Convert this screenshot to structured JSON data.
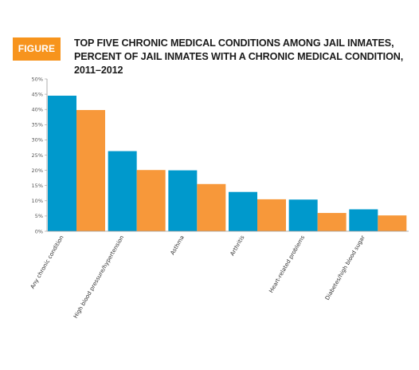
{
  "figure_label": "FIGURE 1.",
  "title": "TOP FIVE CHRONIC MEDICAL CONDITIONS AMONG JAIL INMATES, PERCENT OF JAIL INMATES WITH A CHRONIC MEDICAL CONDITION, 2011–2012",
  "colors": {
    "badge": "#f7941d",
    "series1": "#0099cc",
    "series2": "#f7983a"
  },
  "chart_data": {
    "type": "bar",
    "title": "TOP FIVE CHRONIC MEDICAL CONDITIONS AMONG JAIL INMATES, PERCENT OF JAIL INMATES WITH A CHRONIC MEDICAL CONDITION, 2011–2012",
    "xlabel": "",
    "ylabel": "",
    "categories": [
      "Any chronic condition",
      "High blood pressure/hypertension",
      "Asthma",
      "Arthritis",
      "Heart-related problems",
      "Diabetes/high blood sugar"
    ],
    "series": [
      {
        "values": [
          44.5,
          26.3,
          20.0,
          12.9,
          10.4,
          7.2
        ]
      },
      {
        "values": [
          39.8,
          20.1,
          15.5,
          10.5,
          6.0,
          5.2
        ]
      }
    ],
    "ylim": [
      0,
      50
    ],
    "yticks": [
      "0%",
      "5%",
      "10%",
      "15%",
      "20%",
      "25%",
      "30%",
      "35%",
      "40%",
      "45%",
      "50%"
    ],
    "grid": false,
    "legend": "none"
  }
}
